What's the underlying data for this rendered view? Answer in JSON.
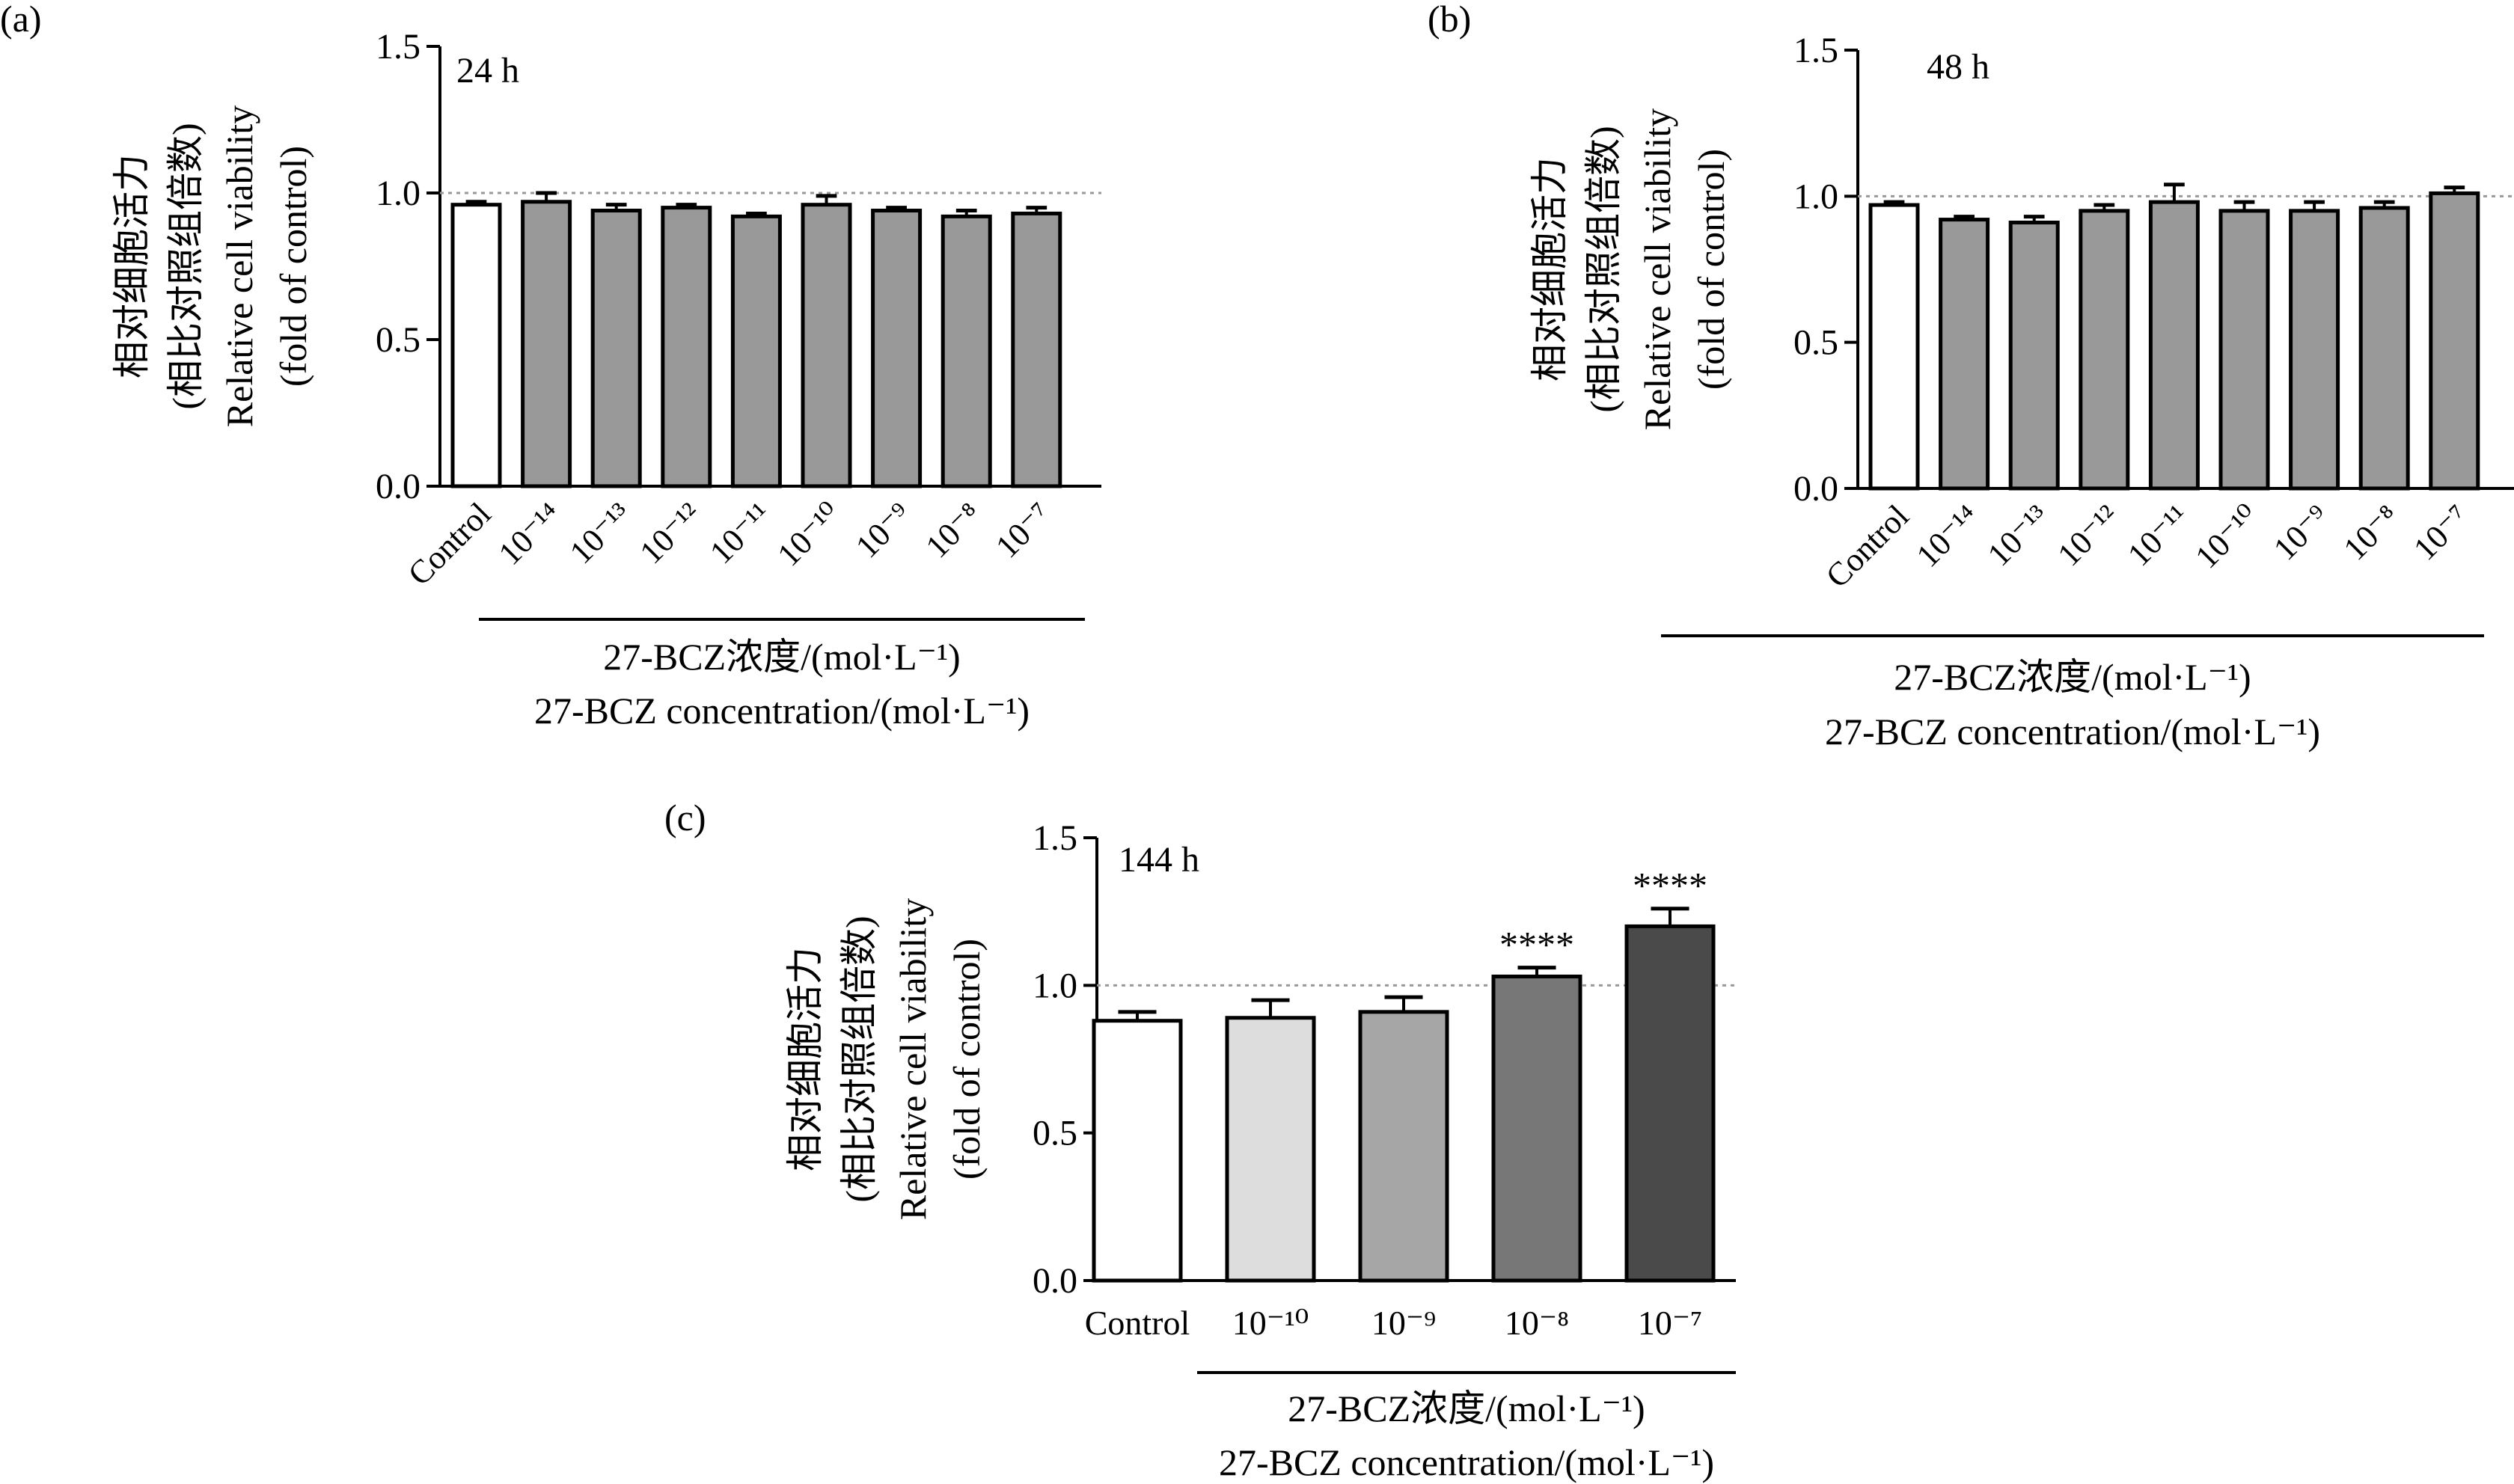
{
  "figure": {
    "ylabel_lines": [
      "相对细胞活力",
      "(相比对照组倍数)",
      "Relative cell viability",
      "(fold of control)"
    ],
    "xlabel_lines": [
      "27-BCZ浓度/(mol·L⁻¹)",
      "27-BCZ concentration/(mol·L⁻¹)"
    ],
    "reference_line": 1.0
  },
  "chart_data": [
    {
      "type": "bar",
      "panel_label": "(a)",
      "time_label": "24 h",
      "categories": [
        "Control",
        "10⁻¹⁴",
        "10⁻¹³",
        "10⁻¹²",
        "10⁻¹¹",
        "10⁻¹⁰",
        "10⁻⁹",
        "10⁻⁸",
        "10⁻⁷"
      ],
      "values": [
        0.96,
        0.97,
        0.94,
        0.95,
        0.92,
        0.96,
        0.94,
        0.92,
        0.93
      ],
      "errors": [
        0.01,
        0.03,
        0.02,
        0.01,
        0.01,
        0.03,
        0.01,
        0.02,
        0.02
      ],
      "bar_colors": [
        "#ffffff",
        "#999999",
        "#999999",
        "#999999",
        "#999999",
        "#999999",
        "#999999",
        "#999999",
        "#999999"
      ],
      "significance": [
        "",
        "",
        "",
        "",
        "",
        "",
        "",
        "",
        ""
      ],
      "ylim": [
        0,
        1.5
      ],
      "yticks": [
        "0.0",
        "0.5",
        "1.0",
        "1.5"
      ],
      "xtick_rotation": -45
    },
    {
      "type": "bar",
      "panel_label": "(b)",
      "time_label": "48 h",
      "categories": [
        "Control",
        "10⁻¹⁴",
        "10⁻¹³",
        "10⁻¹²",
        "10⁻¹¹",
        "10⁻¹⁰",
        "10⁻⁹",
        "10⁻⁸",
        "10⁻⁷"
      ],
      "values": [
        0.97,
        0.92,
        0.91,
        0.95,
        0.98,
        0.95,
        0.95,
        0.96,
        1.01
      ],
      "errors": [
        0.01,
        0.01,
        0.02,
        0.02,
        0.06,
        0.03,
        0.03,
        0.02,
        0.02
      ],
      "bar_colors": [
        "#ffffff",
        "#999999",
        "#999999",
        "#999999",
        "#999999",
        "#999999",
        "#999999",
        "#999999",
        "#999999"
      ],
      "significance": [
        "",
        "",
        "",
        "",
        "",
        "",
        "",
        "",
        ""
      ],
      "ylim": [
        0,
        1.5
      ],
      "yticks": [
        "0.0",
        "0.5",
        "1.0",
        "1.5"
      ],
      "xtick_rotation": -45
    },
    {
      "type": "bar",
      "panel_label": "(c)",
      "time_label": "144 h",
      "categories": [
        "Control",
        "10⁻¹⁰",
        "10⁻⁹",
        "10⁻⁸",
        "10⁻⁷"
      ],
      "values": [
        0.88,
        0.89,
        0.91,
        1.03,
        1.2
      ],
      "errors": [
        0.03,
        0.06,
        0.05,
        0.03,
        0.06
      ],
      "bar_colors": [
        "#ffffff",
        "#dddddd",
        "#a6a6a6",
        "#777777",
        "#4a4a4a"
      ],
      "significance": [
        "",
        "",
        "",
        "****",
        "****"
      ],
      "ylim": [
        0,
        1.5
      ],
      "yticks": [
        "0.0",
        "0.5",
        "1.0",
        "1.5"
      ],
      "xtick_rotation": 0
    }
  ]
}
